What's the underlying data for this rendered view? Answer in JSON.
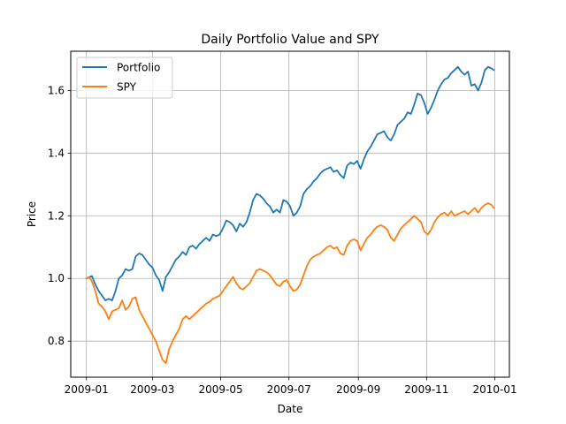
{
  "chart_data": {
    "type": "line",
    "title": "Daily Portfolio Value and SPY",
    "xlabel": "Date",
    "ylabel": "Price",
    "grid": true,
    "legend_position": "top-left",
    "xlim": [
      "2008-12-18",
      "2010-01-14"
    ],
    "ylim": [
      0.685,
      1.725
    ],
    "x_ticks": [
      "2009-01-01",
      "2009-03-01",
      "2009-05-01",
      "2009-07-01",
      "2009-09-01",
      "2009-11-01",
      "2010-01-01"
    ],
    "x_tick_labels": [
      "2009-01",
      "2009-03",
      "2009-05",
      "2009-07",
      "2009-09",
      "2009-11",
      "2010-01"
    ],
    "y_ticks": [
      0.8,
      1.0,
      1.2,
      1.4,
      1.6
    ],
    "y_tick_labels": [
      "0.8",
      "1.0",
      "1.2",
      "1.4",
      "1.6"
    ],
    "series": [
      {
        "name": "Portfolio",
        "color": "#1f77b4",
        "points": [
          [
            "2009-01-01",
            1.0
          ],
          [
            "2009-01-04",
            1.005
          ],
          [
            "2009-01-06",
            1.008
          ],
          [
            "2009-01-09",
            0.98
          ],
          [
            "2009-01-12",
            0.96
          ],
          [
            "2009-01-15",
            0.945
          ],
          [
            "2009-01-18",
            0.93
          ],
          [
            "2009-01-21",
            0.935
          ],
          [
            "2009-01-24",
            0.93
          ],
          [
            "2009-01-27",
            0.96
          ],
          [
            "2009-01-30",
            1.0
          ],
          [
            "2009-02-02",
            1.01
          ],
          [
            "2009-02-05",
            1.03
          ],
          [
            "2009-02-08",
            1.025
          ],
          [
            "2009-02-11",
            1.03
          ],
          [
            "2009-02-14",
            1.07
          ],
          [
            "2009-02-17",
            1.08
          ],
          [
            "2009-02-20",
            1.075
          ],
          [
            "2009-02-23",
            1.06
          ],
          [
            "2009-02-26",
            1.045
          ],
          [
            "2009-03-01",
            1.035
          ],
          [
            "2009-03-04",
            1.01
          ],
          [
            "2009-03-07",
            0.995
          ],
          [
            "2009-03-10",
            0.96
          ],
          [
            "2009-03-13",
            1.005
          ],
          [
            "2009-03-16",
            1.02
          ],
          [
            "2009-03-19",
            1.04
          ],
          [
            "2009-03-22",
            1.06
          ],
          [
            "2009-03-25",
            1.07
          ],
          [
            "2009-03-28",
            1.085
          ],
          [
            "2009-03-31",
            1.075
          ],
          [
            "2009-04-03",
            1.1
          ],
          [
            "2009-04-06",
            1.105
          ],
          [
            "2009-04-09",
            1.095
          ],
          [
            "2009-04-12",
            1.11
          ],
          [
            "2009-04-15",
            1.12
          ],
          [
            "2009-04-18",
            1.13
          ],
          [
            "2009-04-21",
            1.12
          ],
          [
            "2009-04-24",
            1.14
          ],
          [
            "2009-04-27",
            1.135
          ],
          [
            "2009-04-30",
            1.14
          ],
          [
            "2009-05-03",
            1.16
          ],
          [
            "2009-05-06",
            1.185
          ],
          [
            "2009-05-09",
            1.18
          ],
          [
            "2009-05-12",
            1.17
          ],
          [
            "2009-05-15",
            1.15
          ],
          [
            "2009-05-18",
            1.175
          ],
          [
            "2009-05-21",
            1.165
          ],
          [
            "2009-05-24",
            1.18
          ],
          [
            "2009-05-27",
            1.21
          ],
          [
            "2009-05-30",
            1.25
          ],
          [
            "2009-06-02",
            1.27
          ],
          [
            "2009-06-05",
            1.265
          ],
          [
            "2009-06-08",
            1.255
          ],
          [
            "2009-06-11",
            1.24
          ],
          [
            "2009-06-14",
            1.23
          ],
          [
            "2009-06-17",
            1.21
          ],
          [
            "2009-06-20",
            1.22
          ],
          [
            "2009-06-23",
            1.21
          ],
          [
            "2009-06-26",
            1.25
          ],
          [
            "2009-06-29",
            1.245
          ],
          [
            "2009-07-02",
            1.23
          ],
          [
            "2009-07-05",
            1.2
          ],
          [
            "2009-07-08",
            1.21
          ],
          [
            "2009-07-11",
            1.23
          ],
          [
            "2009-07-14",
            1.27
          ],
          [
            "2009-07-17",
            1.285
          ],
          [
            "2009-07-20",
            1.295
          ],
          [
            "2009-07-23",
            1.31
          ],
          [
            "2009-07-26",
            1.32
          ],
          [
            "2009-07-29",
            1.335
          ],
          [
            "2009-08-01",
            1.345
          ],
          [
            "2009-08-04",
            1.35
          ],
          [
            "2009-08-07",
            1.355
          ],
          [
            "2009-08-10",
            1.34
          ],
          [
            "2009-08-13",
            1.345
          ],
          [
            "2009-08-16",
            1.33
          ],
          [
            "2009-08-19",
            1.32
          ],
          [
            "2009-08-22",
            1.36
          ],
          [
            "2009-08-25",
            1.37
          ],
          [
            "2009-08-28",
            1.365
          ],
          [
            "2009-08-31",
            1.375
          ],
          [
            "2009-09-03",
            1.35
          ],
          [
            "2009-09-06",
            1.38
          ],
          [
            "2009-09-09",
            1.405
          ],
          [
            "2009-09-12",
            1.42
          ],
          [
            "2009-09-15",
            1.44
          ],
          [
            "2009-09-18",
            1.46
          ],
          [
            "2009-09-21",
            1.465
          ],
          [
            "2009-09-24",
            1.47
          ],
          [
            "2009-09-27",
            1.45
          ],
          [
            "2009-09-30",
            1.44
          ],
          [
            "2009-10-03",
            1.46
          ],
          [
            "2009-10-06",
            1.49
          ],
          [
            "2009-10-09",
            1.5
          ],
          [
            "2009-10-12",
            1.51
          ],
          [
            "2009-10-15",
            1.53
          ],
          [
            "2009-10-18",
            1.525
          ],
          [
            "2009-10-21",
            1.555
          ],
          [
            "2009-10-24",
            1.59
          ],
          [
            "2009-10-27",
            1.585
          ],
          [
            "2009-10-30",
            1.56
          ],
          [
            "2009-11-02",
            1.525
          ],
          [
            "2009-11-05",
            1.545
          ],
          [
            "2009-11-08",
            1.57
          ],
          [
            "2009-11-11",
            1.6
          ],
          [
            "2009-11-14",
            1.62
          ],
          [
            "2009-11-17",
            1.635
          ],
          [
            "2009-11-20",
            1.64
          ],
          [
            "2009-11-23",
            1.655
          ],
          [
            "2009-11-26",
            1.665
          ],
          [
            "2009-11-29",
            1.675
          ],
          [
            "2009-12-02",
            1.66
          ],
          [
            "2009-12-05",
            1.65
          ],
          [
            "2009-12-08",
            1.66
          ],
          [
            "2009-12-11",
            1.615
          ],
          [
            "2009-12-14",
            1.62
          ],
          [
            "2009-12-17",
            1.6
          ],
          [
            "2009-12-20",
            1.625
          ],
          [
            "2009-12-23",
            1.665
          ],
          [
            "2009-12-26",
            1.675
          ],
          [
            "2009-12-29",
            1.67
          ],
          [
            "2009-12-31",
            1.665
          ]
        ]
      },
      {
        "name": "SPY",
        "color": "#ff7f0e",
        "points": [
          [
            "2009-01-01",
            1.0
          ],
          [
            "2009-01-04",
            1.003
          ],
          [
            "2009-01-06",
            0.99
          ],
          [
            "2009-01-09",
            0.96
          ],
          [
            "2009-01-12",
            0.92
          ],
          [
            "2009-01-15",
            0.91
          ],
          [
            "2009-01-18",
            0.895
          ],
          [
            "2009-01-21",
            0.87
          ],
          [
            "2009-01-24",
            0.895
          ],
          [
            "2009-01-27",
            0.9
          ],
          [
            "2009-01-30",
            0.905
          ],
          [
            "2009-02-02",
            0.93
          ],
          [
            "2009-02-05",
            0.9
          ],
          [
            "2009-02-08",
            0.91
          ],
          [
            "2009-02-11",
            0.935
          ],
          [
            "2009-02-14",
            0.94
          ],
          [
            "2009-02-17",
            0.9
          ],
          [
            "2009-02-20",
            0.88
          ],
          [
            "2009-02-23",
            0.86
          ],
          [
            "2009-02-26",
            0.84
          ],
          [
            "2009-03-01",
            0.82
          ],
          [
            "2009-03-04",
            0.8
          ],
          [
            "2009-03-07",
            0.77
          ],
          [
            "2009-03-10",
            0.74
          ],
          [
            "2009-03-13",
            0.73
          ],
          [
            "2009-03-16",
            0.775
          ],
          [
            "2009-03-19",
            0.8
          ],
          [
            "2009-03-22",
            0.82
          ],
          [
            "2009-03-25",
            0.84
          ],
          [
            "2009-03-28",
            0.87
          ],
          [
            "2009-03-31",
            0.88
          ],
          [
            "2009-04-03",
            0.87
          ],
          [
            "2009-04-06",
            0.88
          ],
          [
            "2009-04-09",
            0.89
          ],
          [
            "2009-04-12",
            0.9
          ],
          [
            "2009-04-15",
            0.91
          ],
          [
            "2009-04-18",
            0.92
          ],
          [
            "2009-04-21",
            0.925
          ],
          [
            "2009-04-24",
            0.935
          ],
          [
            "2009-04-27",
            0.94
          ],
          [
            "2009-04-30",
            0.945
          ],
          [
            "2009-05-03",
            0.96
          ],
          [
            "2009-05-06",
            0.975
          ],
          [
            "2009-05-09",
            0.99
          ],
          [
            "2009-05-12",
            1.005
          ],
          [
            "2009-05-15",
            0.985
          ],
          [
            "2009-05-18",
            0.97
          ],
          [
            "2009-05-21",
            0.965
          ],
          [
            "2009-05-24",
            0.975
          ],
          [
            "2009-05-27",
            0.985
          ],
          [
            "2009-05-30",
            1.005
          ],
          [
            "2009-06-02",
            1.025
          ],
          [
            "2009-06-05",
            1.03
          ],
          [
            "2009-06-08",
            1.025
          ],
          [
            "2009-06-11",
            1.02
          ],
          [
            "2009-06-14",
            1.01
          ],
          [
            "2009-06-17",
            0.995
          ],
          [
            "2009-06-20",
            0.98
          ],
          [
            "2009-06-23",
            0.975
          ],
          [
            "2009-06-26",
            0.99
          ],
          [
            "2009-06-29",
            0.995
          ],
          [
            "2009-07-02",
            0.975
          ],
          [
            "2009-07-05",
            0.96
          ],
          [
            "2009-07-08",
            0.965
          ],
          [
            "2009-07-11",
            0.98
          ],
          [
            "2009-07-14",
            1.01
          ],
          [
            "2009-07-17",
            1.04
          ],
          [
            "2009-07-20",
            1.06
          ],
          [
            "2009-07-23",
            1.07
          ],
          [
            "2009-07-26",
            1.075
          ],
          [
            "2009-07-29",
            1.08
          ],
          [
            "2009-08-01",
            1.09
          ],
          [
            "2009-08-04",
            1.1
          ],
          [
            "2009-08-07",
            1.105
          ],
          [
            "2009-08-10",
            1.095
          ],
          [
            "2009-08-13",
            1.1
          ],
          [
            "2009-08-16",
            1.08
          ],
          [
            "2009-08-19",
            1.075
          ],
          [
            "2009-08-22",
            1.105
          ],
          [
            "2009-08-25",
            1.12
          ],
          [
            "2009-08-28",
            1.125
          ],
          [
            "2009-08-31",
            1.12
          ],
          [
            "2009-09-03",
            1.09
          ],
          [
            "2009-09-06",
            1.11
          ],
          [
            "2009-09-09",
            1.13
          ],
          [
            "2009-09-12",
            1.14
          ],
          [
            "2009-09-15",
            1.155
          ],
          [
            "2009-09-18",
            1.165
          ],
          [
            "2009-09-21",
            1.17
          ],
          [
            "2009-09-24",
            1.165
          ],
          [
            "2009-09-27",
            1.155
          ],
          [
            "2009-09-30",
            1.13
          ],
          [
            "2009-10-03",
            1.12
          ],
          [
            "2009-10-06",
            1.14
          ],
          [
            "2009-10-09",
            1.16
          ],
          [
            "2009-10-12",
            1.17
          ],
          [
            "2009-10-15",
            1.18
          ],
          [
            "2009-10-18",
            1.19
          ],
          [
            "2009-10-21",
            1.2
          ],
          [
            "2009-10-24",
            1.19
          ],
          [
            "2009-10-27",
            1.18
          ],
          [
            "2009-10-30",
            1.15
          ],
          [
            "2009-11-02",
            1.14
          ],
          [
            "2009-11-05",
            1.155
          ],
          [
            "2009-11-08",
            1.18
          ],
          [
            "2009-11-11",
            1.195
          ],
          [
            "2009-11-14",
            1.205
          ],
          [
            "2009-11-17",
            1.21
          ],
          [
            "2009-11-20",
            1.2
          ],
          [
            "2009-11-23",
            1.215
          ],
          [
            "2009-11-26",
            1.2
          ],
          [
            "2009-11-29",
            1.205
          ],
          [
            "2009-12-02",
            1.21
          ],
          [
            "2009-12-05",
            1.215
          ],
          [
            "2009-12-08",
            1.205
          ],
          [
            "2009-12-11",
            1.215
          ],
          [
            "2009-12-14",
            1.225
          ],
          [
            "2009-12-17",
            1.21
          ],
          [
            "2009-12-20",
            1.225
          ],
          [
            "2009-12-23",
            1.235
          ],
          [
            "2009-12-26",
            1.24
          ],
          [
            "2009-12-29",
            1.235
          ],
          [
            "2009-12-31",
            1.225
          ]
        ]
      }
    ]
  }
}
